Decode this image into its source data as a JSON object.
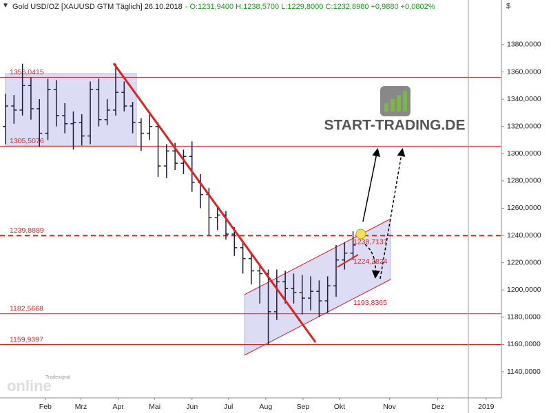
{
  "chart_data": {
    "type": "ohlc",
    "title": "Gold USD/OZ [XAUUSD GTM  Täglich] 26.10.2018",
    "quote": "- O:1231,9400 H:1238,5700 L:1229,8000 C:1232,8980 +0,9880 +0,0802%",
    "quote_color": "#1a9a1a",
    "unit": "$",
    "logo_text": "START-TRADING.DE",
    "source_top": "Tradesignal",
    "source_bottom": "online",
    "color": "#1c1c3c",
    "level_color": "#dd2222",
    "open": [
      1320,
      1335,
      1332,
      1350,
      1333,
      1315,
      1347,
      1328,
      1322,
      1323,
      1313,
      1347,
      1325,
      1332,
      1345,
      1335,
      1323,
      1315,
      1320,
      1291,
      1302,
      1293,
      1298,
      1279,
      1270,
      1253,
      1255,
      1241,
      1231,
      1223,
      1214,
      1212,
      1184,
      1206,
      1201,
      1198,
      1194,
      1199,
      1192,
      1203,
      1222,
      1227
    ],
    "high": [
      1344,
      1343,
      1366,
      1356,
      1340,
      1355,
      1354,
      1337,
      1331,
      1329,
      1353,
      1355,
      1340,
      1366,
      1353,
      1338,
      1326,
      1329,
      1323,
      1307,
      1308,
      1303,
      1309,
      1285,
      1275,
      1262,
      1258,
      1246,
      1236,
      1226,
      1218,
      1215,
      1215,
      1214,
      1212,
      1211,
      1210,
      1207,
      1210,
      1233,
      1235,
      1243
    ],
    "low": [
      1307,
      1322,
      1328,
      1325,
      1305,
      1310,
      1320,
      1315,
      1303,
      1306,
      1307,
      1320,
      1321,
      1328,
      1331,
      1315,
      1302,
      1310,
      1283,
      1282,
      1288,
      1285,
      1272,
      1260,
      1240,
      1244,
      1237,
      1225,
      1212,
      1204,
      1190,
      1160,
      1178,
      1190,
      1190,
      1182,
      1185,
      1180,
      1183,
      1195,
      1215,
      1222
    ],
    "close": [
      1335,
      1332,
      1350,
      1333,
      1315,
      1347,
      1328,
      1322,
      1323,
      1313,
      1347,
      1325,
      1332,
      1345,
      1335,
      1323,
      1315,
      1320,
      1291,
      1302,
      1293,
      1298,
      1279,
      1270,
      1253,
      1255,
      1241,
      1231,
      1223,
      1214,
      1212,
      1184,
      1206,
      1201,
      1198,
      1194,
      1199,
      1192,
      1203,
      1222,
      1227,
      1233
    ],
    "xlim": [
      -0.65,
      58.5
    ],
    "xticks": [
      {
        "value": 4.7,
        "label": "Feb"
      },
      {
        "value": 8.9,
        "label": "Mrz"
      },
      {
        "value": 13.3,
        "label": "Apr"
      },
      {
        "value": 17.6,
        "label": "Mai"
      },
      {
        "value": 22,
        "label": "Jun"
      },
      {
        "value": 26.3,
        "label": "Jul"
      },
      {
        "value": 30.7,
        "label": "Aug"
      },
      {
        "value": 35.1,
        "label": "Sep"
      },
      {
        "value": 39.4,
        "label": "Okt"
      },
      {
        "value": 45.3,
        "label": "Nov"
      },
      {
        "value": 51,
        "label": "Dez"
      },
      {
        "value": 56.7,
        "label": "2019"
      }
    ],
    "ylim": [
      1120.8,
      1412.8
    ],
    "yticks": [
      {
        "value": 1140,
        "label": "1140,0000"
      },
      {
        "value": 1160,
        "label": "1160,0000"
      },
      {
        "value": 1180,
        "label": "1180,0000"
      },
      {
        "value": 1200,
        "label": "1200,0000"
      },
      {
        "value": 1220,
        "label": "1220,0000"
      },
      {
        "value": 1240,
        "label": "1240,0000"
      },
      {
        "value": 1260,
        "label": "1260,0000"
      },
      {
        "value": 1280,
        "label": "1280,0000"
      },
      {
        "value": 1300,
        "label": "1300,0000"
      },
      {
        "value": 1320,
        "label": "1320,0000"
      },
      {
        "value": 1340,
        "label": "1340,0000"
      },
      {
        "value": 1360,
        "label": "1360,0000"
      },
      {
        "value": 1380,
        "label": "1380,0000"
      }
    ],
    "grid": true,
    "levels": [
      {
        "value": 1356.0415,
        "label": "1356,0415"
      },
      {
        "value": 1305.5076,
        "label": "1305,5076"
      },
      {
        "value": 1239.8889,
        "label": "1239,8889",
        "dashed": true
      },
      {
        "value": 1182.5668,
        "label": "1182,5668"
      },
      {
        "value": 1159.9397,
        "label": "1159,9397"
      }
    ],
    "channel_labels": [
      {
        "value": 1238.7137,
        "label": "1238,7137"
      },
      {
        "value": 1224.2824,
        "label": "1224,2824"
      },
      {
        "value": 1193.8365,
        "label": "1193,8365"
      }
    ]
  }
}
